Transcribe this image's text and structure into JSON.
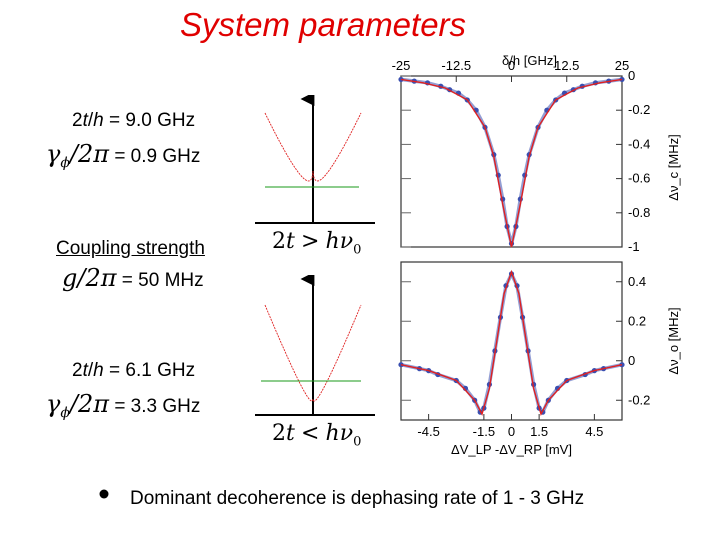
{
  "title": "System parameters",
  "case_top": {
    "tunnel_pre": "2",
    "tunnel_t": "t",
    "tunnel_slash": "/",
    "tunnel_h": "h",
    "tunnel_value": " = 9.0 GHz",
    "dephasing_value": "= 0.9 GHz"
  },
  "coupling": {
    "label": "Coupling strength",
    "value": "= 50 MHz"
  },
  "case_bottom": {
    "tunnel_pre": "2",
    "tunnel_t": "t",
    "tunnel_slash": "/",
    "tunnel_h": "h",
    "tunnel_value": " = 6.1 GHz",
    "dephasing_value": "= 3.3 GHz"
  },
  "bullet": "Dominant decoherence is dephasing rate of 1 - 3 GHz",
  "math": {
    "gamma": "γ",
    "phi": "ϕ",
    "over_2pi": "/2π",
    "g": "g",
    "t": "t",
    "two": "2",
    "gt": ">",
    "lt": "<",
    "hnu0": "hν",
    "sub0": "0"
  },
  "colors": {
    "accent_red": "#e00000",
    "data_blue": "#3a4fb0",
    "fit_red": "#e02020",
    "level_green": "#1a9a1a"
  },
  "chart_data": [
    {
      "type": "scatter",
      "title": "",
      "x_label": "δ/h [GHz]",
      "x_ticks": [
        "-25",
        "-12.5",
        "0",
        "12.5",
        "25"
      ],
      "x_range": [
        -25,
        25
      ],
      "y_label": "Δν_c [MHz]",
      "y_ticks": [
        "0",
        "-0.2",
        "-0.4",
        "-0.6",
        "-0.8",
        "-1"
      ],
      "y_range": [
        -1.0,
        0.0
      ],
      "series": [
        {
          "kind": "data",
          "x": [
            -25,
            -22,
            -19,
            -16,
            -14,
            -12,
            -10,
            -8,
            -6,
            -4,
            -3,
            -2,
            -1,
            0,
            1,
            2,
            3,
            4,
            6,
            8,
            10,
            12,
            14,
            16,
            19,
            22,
            25
          ],
          "y": [
            -0.02,
            -0.03,
            -0.04,
            -0.06,
            -0.08,
            -0.1,
            -0.14,
            -0.2,
            -0.3,
            -0.46,
            -0.58,
            -0.72,
            -0.88,
            -0.98,
            -0.88,
            -0.72,
            -0.58,
            -0.46,
            -0.3,
            -0.2,
            -0.14,
            -0.1,
            -0.08,
            -0.06,
            -0.04,
            -0.03,
            -0.02
          ]
        },
        {
          "kind": "fit",
          "x": [
            -25,
            -20,
            -15,
            -10,
            -6,
            -4,
            -2,
            0,
            2,
            4,
            6,
            10,
            15,
            20,
            25
          ],
          "y": [
            -0.02,
            -0.04,
            -0.07,
            -0.14,
            -0.3,
            -0.47,
            -0.75,
            -1.0,
            -0.75,
            -0.47,
            -0.3,
            -0.14,
            -0.07,
            -0.04,
            -0.02
          ]
        }
      ]
    },
    {
      "type": "scatter",
      "title": "",
      "x_label": "ΔV_LP -ΔV_RP [mV]",
      "x_ticks": [
        "-4.5",
        "-1.5",
        "0",
        "1.5",
        "4.5"
      ],
      "x_range": [
        -6,
        6
      ],
      "y_label": "Δν_o [MHz]",
      "y_ticks": [
        "0.4",
        "0.2",
        "0",
        "-0.2"
      ],
      "y_range": [
        -0.3,
        0.5
      ],
      "series": [
        {
          "kind": "data",
          "x": [
            -6,
            -5,
            -4.5,
            -4,
            -3,
            -2.5,
            -2,
            -1.7,
            -1.5,
            -1.2,
            -0.9,
            -0.6,
            -0.3,
            0,
            0.3,
            0.6,
            0.9,
            1.2,
            1.5,
            1.7,
            2,
            2.5,
            3,
            4,
            4.5,
            5,
            6
          ],
          "y": [
            -0.02,
            -0.04,
            -0.05,
            -0.07,
            -0.1,
            -0.14,
            -0.2,
            -0.26,
            -0.24,
            -0.12,
            0.05,
            0.22,
            0.38,
            0.44,
            0.38,
            0.22,
            0.05,
            -0.12,
            -0.24,
            -0.26,
            -0.2,
            -0.14,
            -0.1,
            -0.07,
            -0.05,
            -0.04,
            -0.02
          ]
        },
        {
          "kind": "fit",
          "x": [
            -6,
            -4.5,
            -3,
            -2,
            -1.6,
            -1.2,
            -0.8,
            -0.4,
            0,
            0.4,
            0.8,
            1.2,
            1.6,
            2,
            3,
            4.5,
            6
          ],
          "y": [
            -0.02,
            -0.05,
            -0.1,
            -0.2,
            -0.27,
            -0.14,
            0.1,
            0.34,
            0.45,
            0.34,
            0.1,
            -0.14,
            -0.27,
            -0.2,
            -0.1,
            -0.05,
            -0.02
          ]
        }
      ]
    }
  ]
}
